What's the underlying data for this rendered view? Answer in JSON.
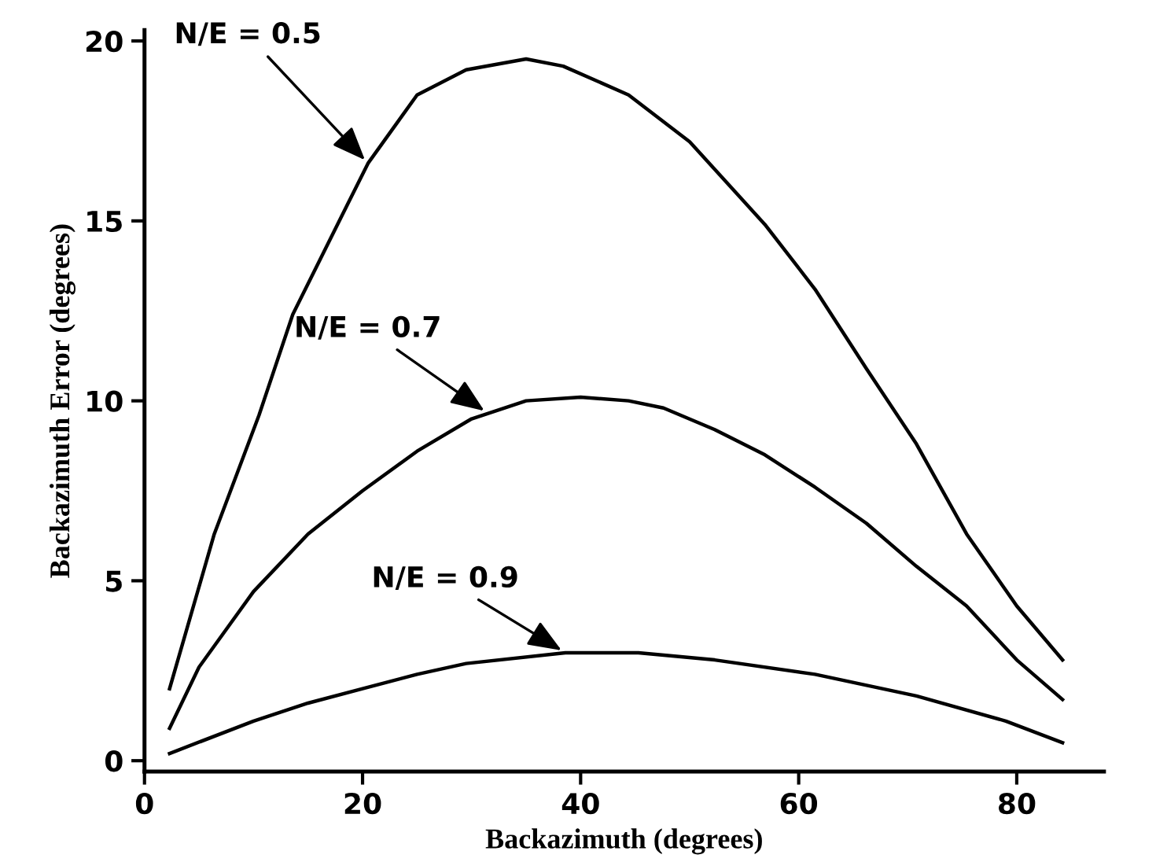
{
  "chart_data": {
    "type": "line",
    "xlabel": "Backazimuth (degrees)",
    "ylabel": "Backazimuth Error (degrees)",
    "xlim": [
      0,
      88
    ],
    "ylim": [
      -0.3,
      20.3
    ],
    "xticks": [
      0,
      20,
      40,
      60,
      80
    ],
    "yticks": [
      0,
      5,
      10,
      15,
      20
    ],
    "grid": false,
    "legend": false,
    "marker": "none",
    "line_style": "solid",
    "series": [
      {
        "name": "N/E = 0.5",
        "color": "#000000",
        "x": [
          2.3,
          6.4,
          10.5,
          13.6,
          17.7,
          20.5,
          25,
          29.5,
          35,
          38.4,
          44.4,
          50,
          56.9,
          61.5,
          66.2,
          70.8,
          75.4,
          80,
          84.2
        ],
        "values": [
          2.0,
          6.3,
          9.6,
          12.4,
          14.9,
          16.6,
          18.5,
          19.2,
          19.5,
          19.3,
          18.5,
          17.2,
          14.9,
          13.1,
          10.9,
          8.8,
          6.3,
          4.3,
          2.8
        ]
      },
      {
        "name": "N/E = 0.7",
        "color": "#000000",
        "x": [
          2.3,
          5,
          10,
          15,
          20,
          25,
          30,
          35,
          40,
          44.4,
          47.6,
          52.3,
          56.9,
          61.5,
          66.2,
          70.8,
          75.4,
          80,
          84.2
        ],
        "values": [
          0.9,
          2.6,
          4.7,
          6.3,
          7.5,
          8.6,
          9.5,
          10.0,
          10.1,
          10.0,
          9.8,
          9.2,
          8.5,
          7.6,
          6.6,
          5.4,
          4.3,
          2.8,
          1.7
        ]
      },
      {
        "name": "N/E = 0.9",
        "color": "#000000",
        "x": [
          2.3,
          10,
          15,
          20,
          25,
          29.5,
          38.6,
          45.3,
          52.3,
          61.5,
          70.8,
          79,
          84.2
        ],
        "values": [
          0.2,
          1.1,
          1.6,
          2.0,
          2.4,
          2.7,
          3.0,
          3.0,
          2.8,
          2.4,
          1.8,
          1.1,
          0.5
        ]
      }
    ]
  }
}
